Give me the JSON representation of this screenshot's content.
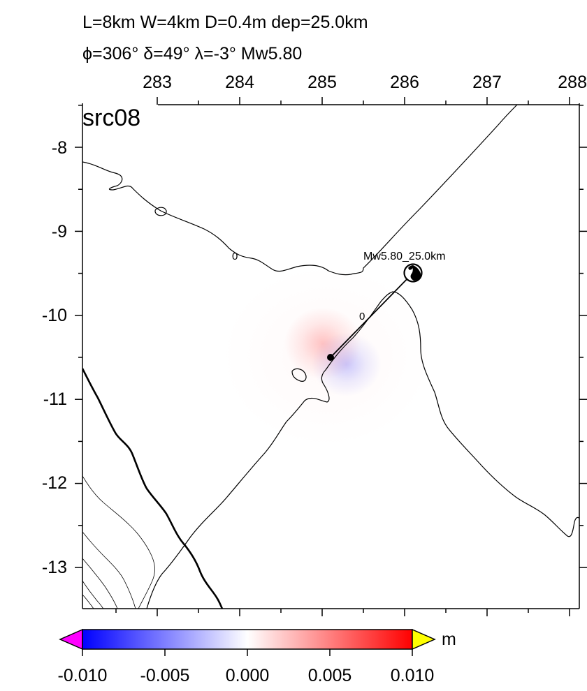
{
  "title": {
    "line1": "L=8km W=4km D=0.4m dep=25.0km",
    "line2": "ϕ=306° δ=49° λ=-3° Mw5.80"
  },
  "map": {
    "panel_label": "src08",
    "lon_ticks": [
      "283",
      "284",
      "285",
      "286",
      "287",
      "288"
    ],
    "lat_ticks": [
      "-8",
      "-9",
      "-10",
      "-11",
      "-12",
      "-13"
    ],
    "lon_range": [
      282.06,
      288.05
    ],
    "lat_range": [
      -13.5,
      -7.8
    ],
    "contour_labels": [
      "0",
      "0"
    ],
    "mechanism_label": "Mw5.80_25.0km",
    "epicenter": {
      "lon": 285.09,
      "lat": -10.5
    },
    "mechanism_pos": {
      "lon": 286.1,
      "lat": -9.5
    },
    "deformation": {
      "uplift_peak_m": 0.004,
      "subsidence_peak_m": -0.003
    }
  },
  "colorbar": {
    "unit": "m",
    "ticks": [
      "-0.010",
      "-0.005",
      "0.000",
      "0.005",
      "0.010"
    ],
    "range": [
      -0.01,
      0.01
    ],
    "colors": {
      "low": "#0000ff",
      "mid": "#ffffff",
      "high": "#ff0000",
      "under": "#ff00ff",
      "over": "#ffff00"
    }
  }
}
